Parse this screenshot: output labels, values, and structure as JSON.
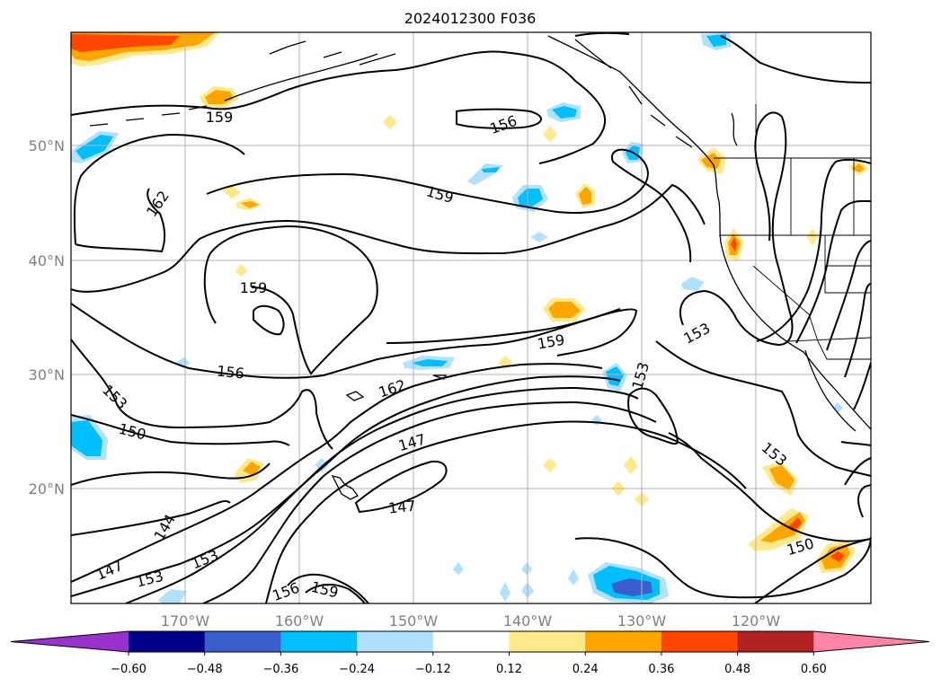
{
  "map": {
    "title": "2024012300 F036",
    "lat_labels": [
      "50°N",
      "40°N",
      "30°N",
      "20°N"
    ],
    "lon_labels": [
      "170°W",
      "160°W",
      "150°W",
      "140°W",
      "130°W",
      "120°W"
    ],
    "contour_levels": [
      "144",
      "147",
      "150",
      "153",
      "156",
      "159",
      "162"
    ]
  },
  "colorbar": {
    "ticks": [
      "−0.60",
      "−0.48",
      "−0.36",
      "−0.24",
      "−0.12",
      "0.12",
      "0.24",
      "0.36",
      "0.48",
      "0.60"
    ],
    "colors": [
      "#9932cc",
      "#00008b",
      "#3a5fcd",
      "#00bfff",
      "#b0e2ff",
      "#ffffff",
      "#ffe98a",
      "#ffa500",
      "#ff4500",
      "#b22222",
      "#ff85a8"
    ]
  }
}
